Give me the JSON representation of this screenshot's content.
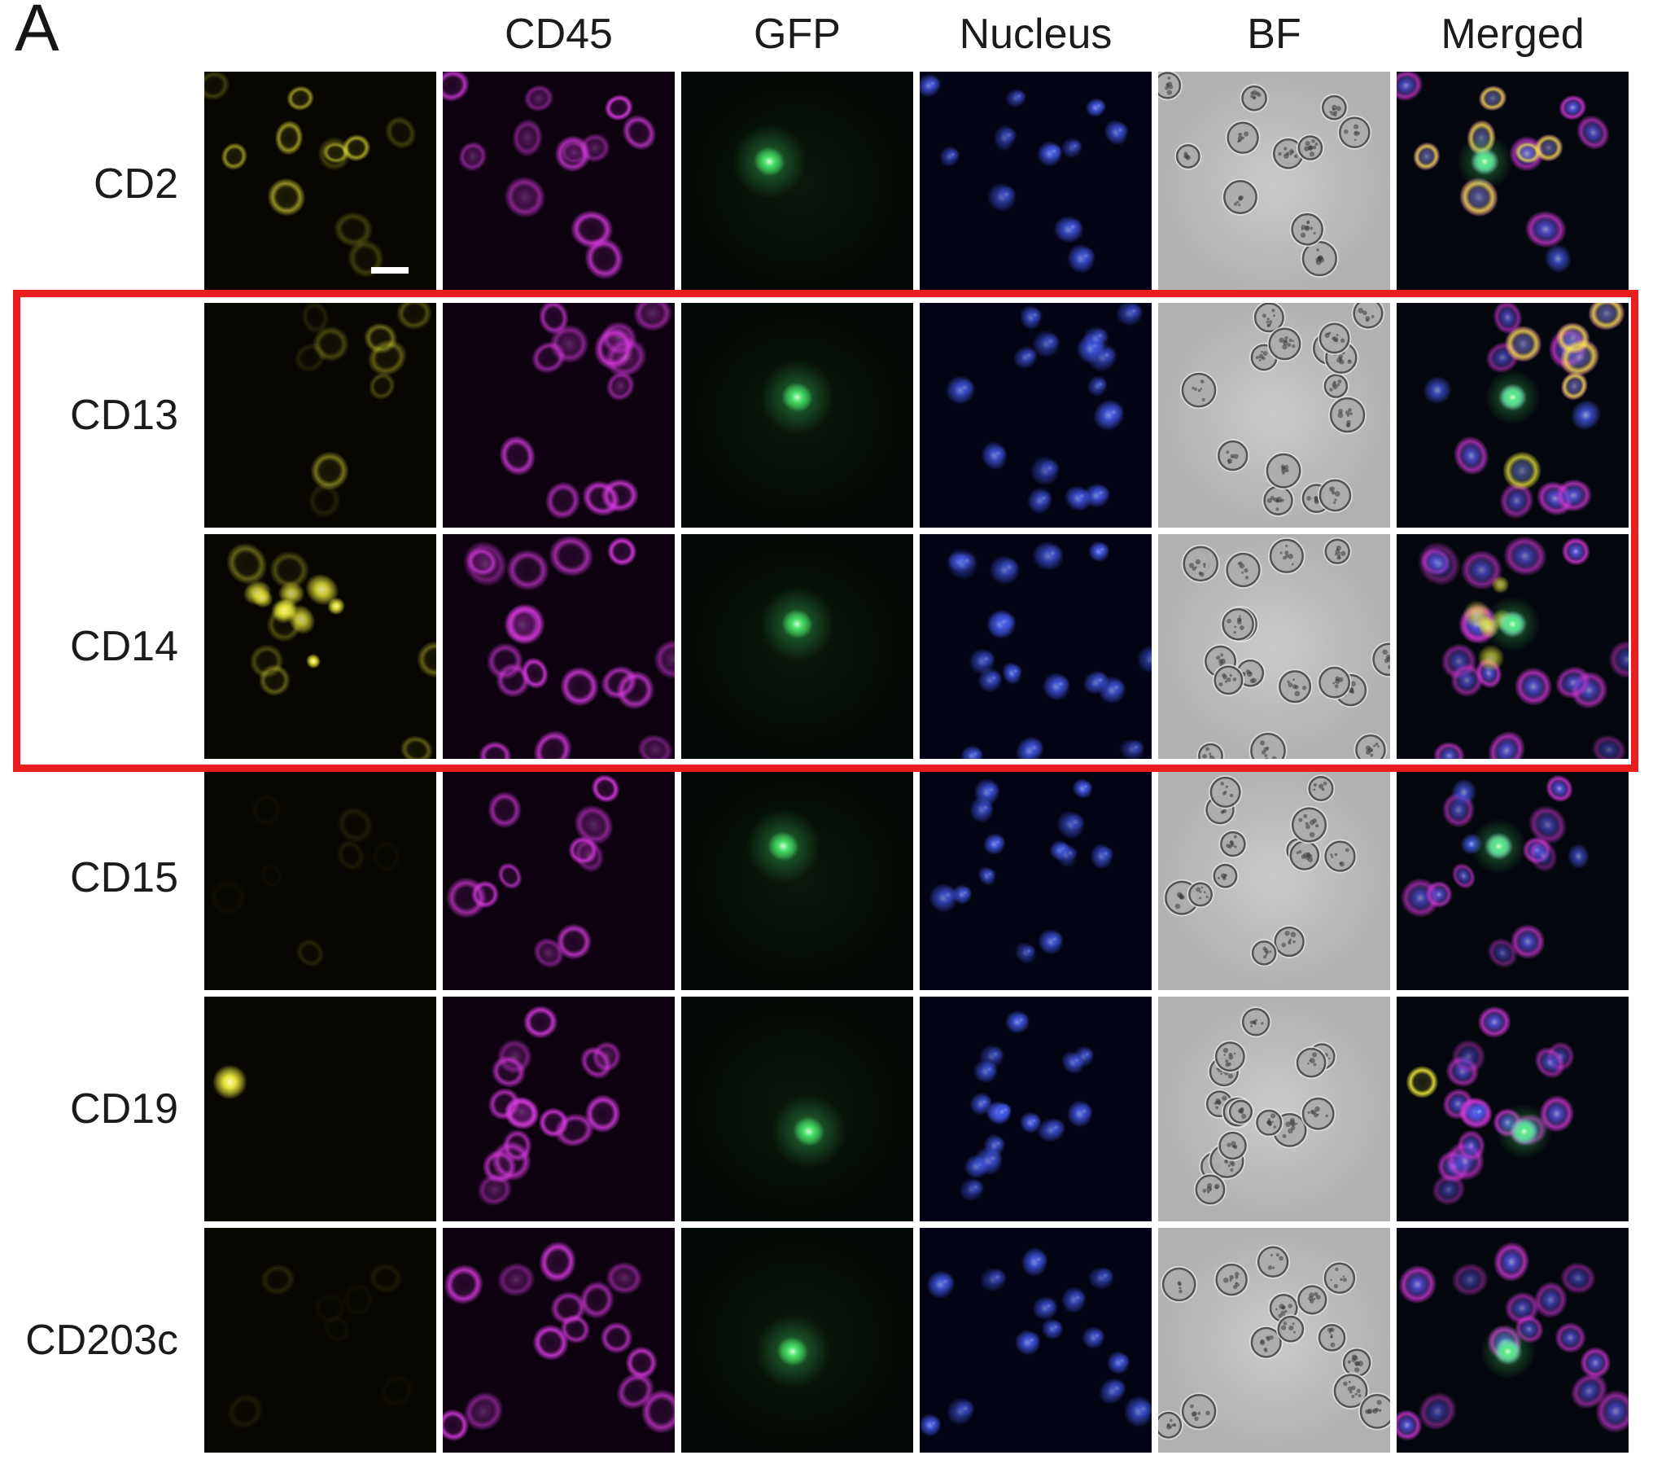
{
  "panel_label": "A",
  "columns": [
    {
      "key": "marker",
      "label": ""
    },
    {
      "key": "cd45",
      "label": "CD45"
    },
    {
      "key": "gfp",
      "label": "GFP"
    },
    {
      "key": "nucleus",
      "label": "Nucleus"
    },
    {
      "key": "bf",
      "label": "BF"
    },
    {
      "key": "merged",
      "label": "Merged"
    }
  ],
  "rows": [
    {
      "label": "CD2",
      "highlighted": false,
      "marker_signal": "strong-rings"
    },
    {
      "label": "CD13",
      "highlighted": true,
      "marker_signal": "weak"
    },
    {
      "label": "CD14",
      "highlighted": true,
      "marker_signal": "strong-cluster"
    },
    {
      "label": "CD15",
      "highlighted": false,
      "marker_signal": "very-weak"
    },
    {
      "label": "CD19",
      "highlighted": false,
      "marker_signal": "single-cell"
    },
    {
      "label": "CD203c",
      "highlighted": false,
      "marker_signal": "very-weak"
    }
  ],
  "highlight": {
    "color": "#e81e1e",
    "applies_to_rows": [
      "CD13",
      "CD14"
    ]
  },
  "channel_colors": {
    "marker": "#f2ef3c",
    "cd45": "#d83ae0",
    "gfp": "#46e468",
    "nucleus": "#4156e4",
    "bf_background": "#bdbdbd",
    "merged_gfp": "#86f2dc"
  },
  "scale_bar": {
    "color": "#ffffff",
    "location": "CD2 marker tile"
  }
}
